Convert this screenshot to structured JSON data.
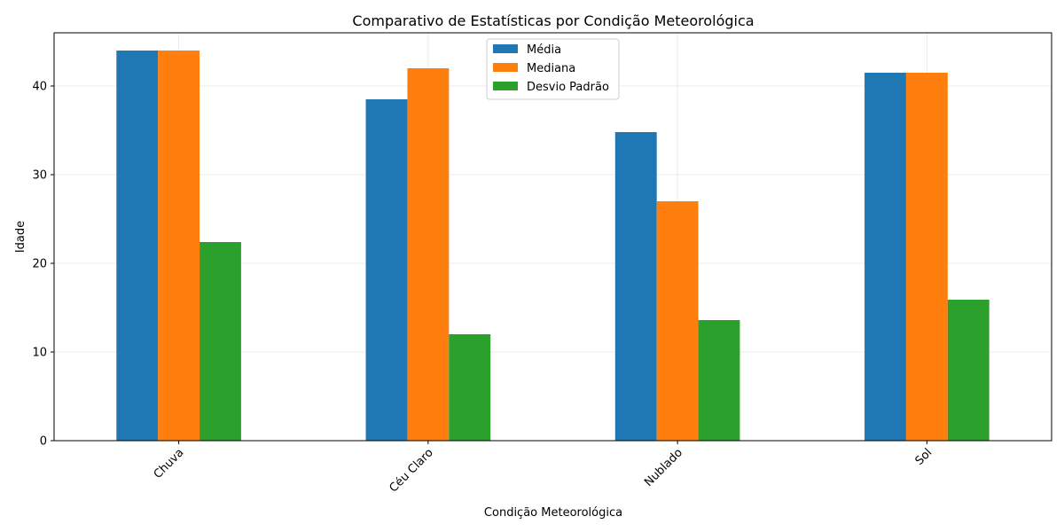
{
  "chart_data": {
    "type": "bar",
    "title": "Comparativo de Estatísticas por Condição Meteorológica",
    "xlabel": "Condição Meteorológica",
    "ylabel": "Idade",
    "categories": [
      "Chuva",
      "Céu Claro",
      "Nublado",
      "Sol"
    ],
    "series": [
      {
        "name": "Média",
        "color": "#1f77b4",
        "values": [
          44.0,
          38.5,
          34.8,
          41.5
        ]
      },
      {
        "name": "Mediana",
        "color": "#ff7f0e",
        "values": [
          44.0,
          42.0,
          27.0,
          41.5
        ]
      },
      {
        "name": "Desvio Padrão",
        "color": "#2ca02c",
        "values": [
          22.4,
          12.0,
          13.6,
          15.9
        ]
      }
    ],
    "ylim": [
      0,
      46
    ],
    "yticks": [
      0,
      10,
      20,
      30,
      40
    ],
    "grid": true,
    "legend_position": "top-center",
    "xtick_rotation": 45
  }
}
